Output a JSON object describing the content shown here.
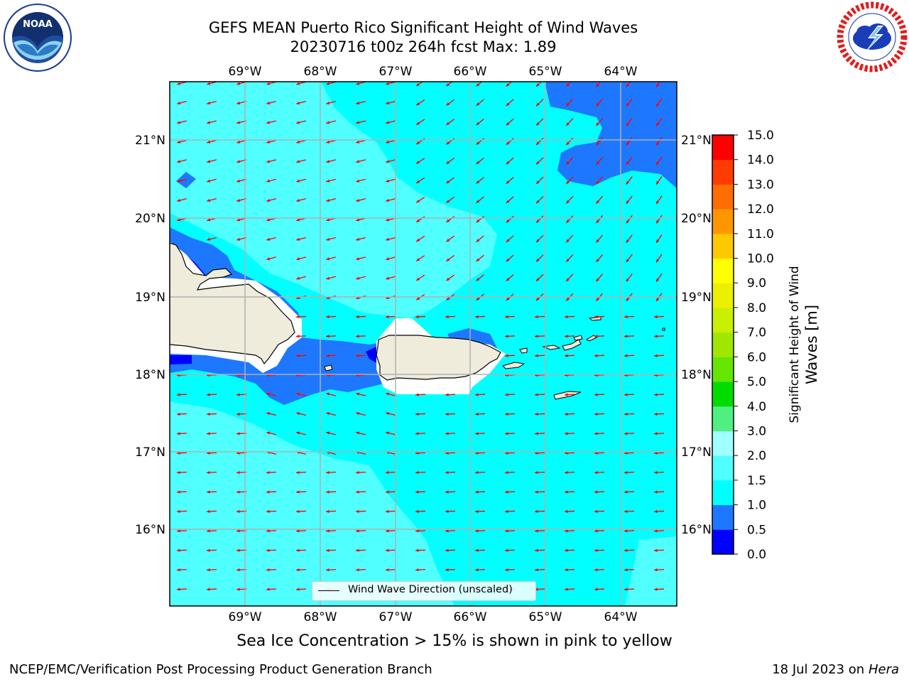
{
  "title": {
    "line1": "GEFS MEAN Puerto Rico Significant Height of Wind Waves",
    "line2": "20230716 t00z 264h fcst   Max: 1.89"
  },
  "map": {
    "lon_labels": [
      "69°W",
      "68°W",
      "67°W",
      "66°W",
      "65°W",
      "64°W"
    ],
    "lat_labels": [
      "21°N",
      "20°N",
      "19°N",
      "18°N",
      "17°N",
      "16°N"
    ],
    "land_color": "#efecdc",
    "arrow_color": "#ff0000",
    "grid_color": "#b0b0b0",
    "legend_label": "Wind Wave Direction (unscaled)"
  },
  "colorbar": {
    "label_line1": "Significant Height of Wind",
    "label_line2": "Waves [m]",
    "tick_labels": [
      "0.0",
      "0.5",
      "1.0",
      "1.5",
      "2.0",
      "3.0",
      "4.0",
      "5.0",
      "6.0",
      "7.0",
      "8.0",
      "9.0",
      "10.0",
      "11.0",
      "12.0",
      "13.0",
      "14.0",
      "15.0"
    ],
    "colors": [
      "#0000ff",
      "#1e78ff",
      "#00ffff",
      "#50ffff",
      "#a0ffff",
      "#50f080",
      "#00dc00",
      "#64e600",
      "#a0e600",
      "#c8f000",
      "#ebf000",
      "#ffff00",
      "#ffc800",
      "#ff9600",
      "#ff6e00",
      "#ff3c00",
      "#ff0000"
    ]
  },
  "logos": {
    "noaa_text": "NOAA",
    "noaa_ring": "NATIONAL OCEANIC AND ATMOSPHERIC ADMINISTRATION · U.S. DEPARTMENT OF COMMERCE",
    "nws_ring": "NATIONAL WEATHER SERVICE"
  },
  "note": "Sea Ice Concentration > 15% is shown in pink to yellow",
  "footer": {
    "left": "NCEP/EMC/Verification Post Processing Product Generation Branch",
    "right_prefix": "18 Jul 2023 on ",
    "right_host": "Hera"
  }
}
